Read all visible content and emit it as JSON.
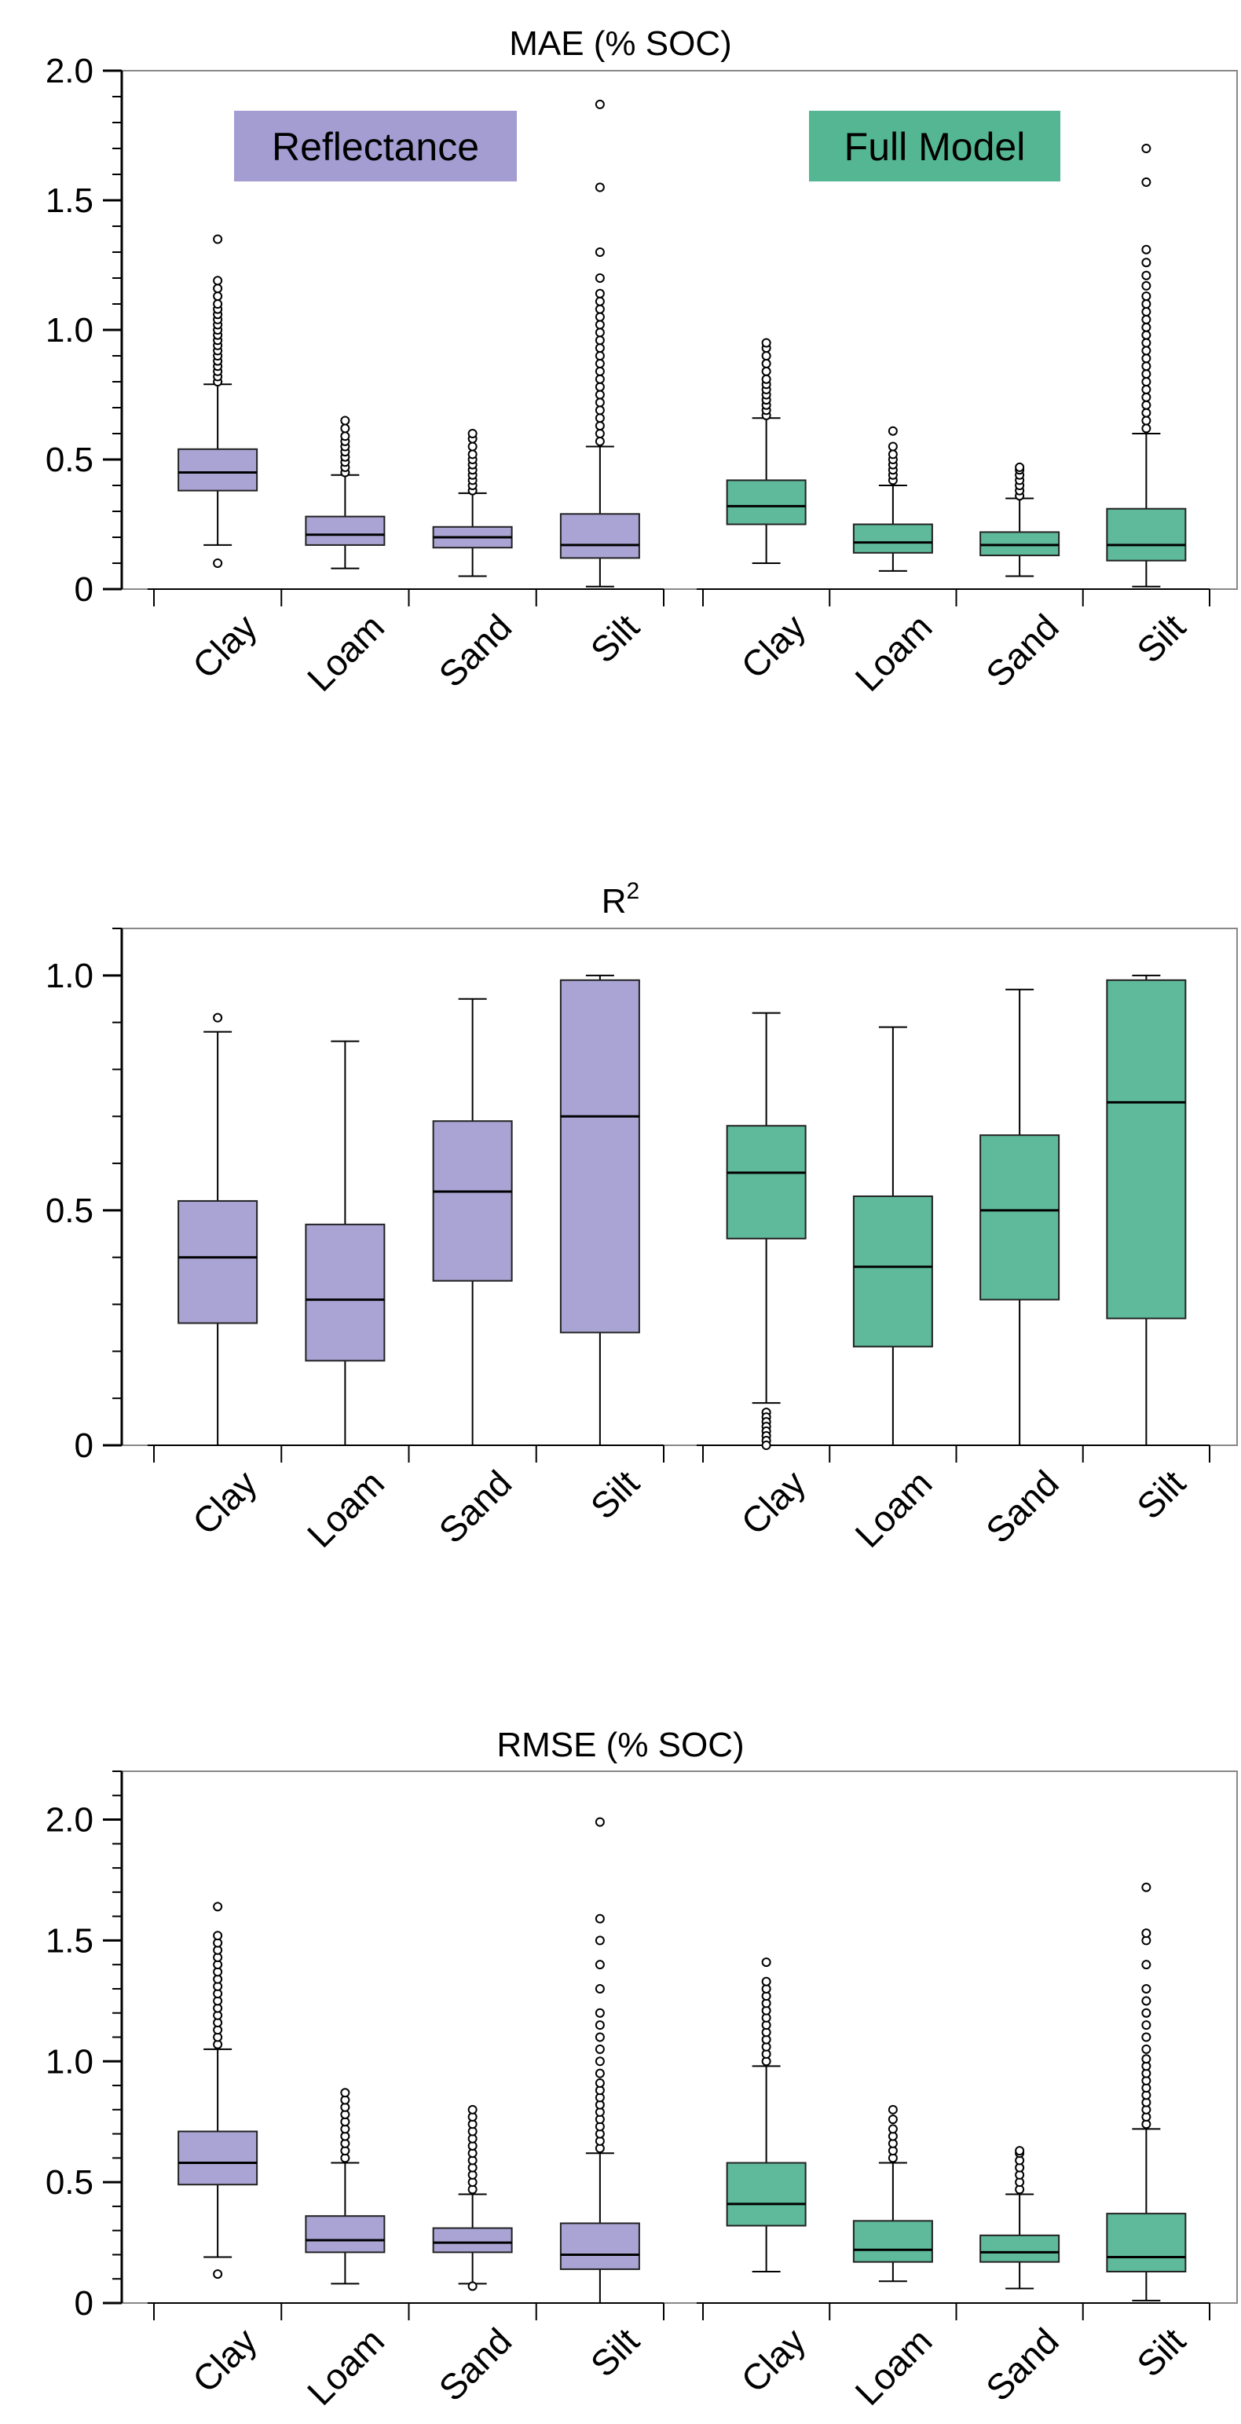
{
  "colors": {
    "reflectance": "#aaa4d4",
    "full_model": "#5fba9c",
    "reflectance_label_bg": "#a39dd2",
    "full_model_label_bg": "#55b694",
    "axis": "#000000",
    "frame": "#888888"
  },
  "legend": {
    "reflectance": "Reflectance",
    "full_model": "Full Model"
  },
  "chart_data": [
    {
      "type": "box",
      "title": "MAE (% SOC)",
      "ylim": [
        0,
        2.0
      ],
      "yticks": [
        "0",
        "0.5",
        "1.0",
        "1.5",
        "2.0"
      ],
      "ytick_values": [
        0,
        0.5,
        1.0,
        1.5,
        2.0
      ],
      "minor_step": 0.1,
      "categories": [
        "Clay",
        "Loam",
        "Sand",
        "Silt"
      ],
      "series": [
        {
          "name": "Reflectance",
          "boxes": [
            {
              "category": "Clay",
              "low": 0.17,
              "q1": 0.38,
              "median": 0.45,
              "q3": 0.54,
              "high": 0.79,
              "outliers": [
                0.8,
                0.82,
                0.84,
                0.86,
                0.88,
                0.9,
                0.92,
                0.94,
                0.96,
                0.98,
                1.0,
                1.02,
                1.04,
                1.06,
                1.08,
                1.1,
                1.13,
                1.16,
                1.19,
                1.35,
                0.1
              ]
            },
            {
              "category": "Loam",
              "low": 0.08,
              "q1": 0.17,
              "median": 0.21,
              "q3": 0.28,
              "high": 0.44,
              "outliers": [
                0.45,
                0.47,
                0.49,
                0.51,
                0.53,
                0.55,
                0.57,
                0.59,
                0.62,
                0.65
              ]
            },
            {
              "category": "Sand",
              "low": 0.05,
              "q1": 0.16,
              "median": 0.2,
              "q3": 0.24,
              "high": 0.37,
              "outliers": [
                0.38,
                0.4,
                0.42,
                0.44,
                0.46,
                0.48,
                0.5,
                0.52,
                0.55,
                0.58,
                0.6
              ]
            },
            {
              "category": "Silt",
              "low": 0.01,
              "q1": 0.12,
              "median": 0.17,
              "q3": 0.29,
              "high": 0.55,
              "outliers": [
                0.57,
                0.6,
                0.63,
                0.66,
                0.69,
                0.72,
                0.75,
                0.78,
                0.81,
                0.84,
                0.87,
                0.9,
                0.93,
                0.96,
                0.99,
                1.02,
                1.05,
                1.08,
                1.11,
                1.14,
                1.2,
                1.3,
                1.55,
                1.87
              ]
            }
          ]
        },
        {
          "name": "Full Model",
          "boxes": [
            {
              "category": "Clay",
              "low": 0.1,
              "q1": 0.25,
              "median": 0.32,
              "q3": 0.42,
              "high": 0.66,
              "outliers": [
                0.67,
                0.69,
                0.71,
                0.73,
                0.75,
                0.77,
                0.79,
                0.81,
                0.84,
                0.87,
                0.9,
                0.93,
                0.95
              ]
            },
            {
              "category": "Loam",
              "low": 0.07,
              "q1": 0.14,
              "median": 0.18,
              "q3": 0.25,
              "high": 0.4,
              "outliers": [
                0.42,
                0.44,
                0.46,
                0.48,
                0.5,
                0.52,
                0.55,
                0.61
              ]
            },
            {
              "category": "Sand",
              "low": 0.05,
              "q1": 0.13,
              "median": 0.17,
              "q3": 0.22,
              "high": 0.35,
              "outliers": [
                0.36,
                0.38,
                0.4,
                0.42,
                0.44,
                0.46,
                0.47
              ]
            },
            {
              "category": "Silt",
              "low": 0.01,
              "q1": 0.11,
              "median": 0.17,
              "q3": 0.31,
              "high": 0.6,
              "outliers": [
                0.62,
                0.65,
                0.68,
                0.71,
                0.74,
                0.77,
                0.8,
                0.83,
                0.86,
                0.89,
                0.92,
                0.95,
                0.98,
                1.01,
                1.04,
                1.07,
                1.1,
                1.13,
                1.17,
                1.21,
                1.26,
                1.31,
                1.57,
                1.7
              ]
            }
          ]
        }
      ]
    },
    {
      "type": "box",
      "title": "R",
      "title_sup": "2",
      "ylim": [
        0,
        1.1
      ],
      "yticks": [
        "0",
        "0.5",
        "1.0"
      ],
      "ytick_values": [
        0,
        0.5,
        1.0
      ],
      "minor_step": 0.1,
      "categories": [
        "Clay",
        "Loam",
        "Sand",
        "Silt"
      ],
      "series": [
        {
          "name": "Reflectance",
          "boxes": [
            {
              "category": "Clay",
              "low": 0.0,
              "q1": 0.26,
              "median": 0.4,
              "q3": 0.52,
              "high": 0.88,
              "outliers": [
                0.91
              ]
            },
            {
              "category": "Loam",
              "low": 0.0,
              "q1": 0.18,
              "median": 0.31,
              "q3": 0.47,
              "high": 0.86,
              "outliers": []
            },
            {
              "category": "Sand",
              "low": 0.0,
              "q1": 0.35,
              "median": 0.54,
              "q3": 0.69,
              "high": 0.95,
              "outliers": []
            },
            {
              "category": "Silt",
              "low": 0.0,
              "q1": 0.24,
              "median": 0.7,
              "q3": 0.99,
              "high": 1.0,
              "outliers": []
            }
          ]
        },
        {
          "name": "Full Model",
          "boxes": [
            {
              "category": "Clay",
              "low": 0.09,
              "q1": 0.44,
              "median": 0.58,
              "q3": 0.68,
              "high": 0.92,
              "outliers": [
                0.07,
                0.06,
                0.05,
                0.04,
                0.03,
                0.02,
                0.01,
                0.0
              ]
            },
            {
              "category": "Loam",
              "low": 0.0,
              "q1": 0.21,
              "median": 0.38,
              "q3": 0.53,
              "high": 0.89,
              "outliers": []
            },
            {
              "category": "Sand",
              "low": 0.0,
              "q1": 0.31,
              "median": 0.5,
              "q3": 0.66,
              "high": 0.97,
              "outliers": []
            },
            {
              "category": "Silt",
              "low": 0.0,
              "q1": 0.27,
              "median": 0.73,
              "q3": 0.99,
              "high": 1.0,
              "outliers": []
            }
          ]
        }
      ]
    },
    {
      "type": "box",
      "title": "RMSE (% SOC)",
      "ylim": [
        0,
        2.2
      ],
      "yticks": [
        "0",
        "0.5",
        "1.0",
        "1.5",
        "2.0"
      ],
      "ytick_values": [
        0,
        0.5,
        1.0,
        1.5,
        2.0
      ],
      "minor_step": 0.1,
      "categories": [
        "Clay",
        "Loam",
        "Sand",
        "Silt"
      ],
      "series": [
        {
          "name": "Reflectance",
          "boxes": [
            {
              "category": "Clay",
              "low": 0.19,
              "q1": 0.49,
              "median": 0.58,
              "q3": 0.71,
              "high": 1.05,
              "outliers": [
                1.07,
                1.1,
                1.13,
                1.16,
                1.19,
                1.22,
                1.25,
                1.28,
                1.31,
                1.34,
                1.37,
                1.4,
                1.43,
                1.46,
                1.49,
                1.52,
                1.64,
                0.12
              ]
            },
            {
              "category": "Loam",
              "low": 0.08,
              "q1": 0.21,
              "median": 0.26,
              "q3": 0.36,
              "high": 0.58,
              "outliers": [
                0.6,
                0.63,
                0.66,
                0.69,
                0.72,
                0.75,
                0.78,
                0.81,
                0.84,
                0.87
              ]
            },
            {
              "category": "Sand",
              "low": 0.08,
              "q1": 0.21,
              "median": 0.25,
              "q3": 0.31,
              "high": 0.45,
              "outliers": [
                0.47,
                0.5,
                0.53,
                0.56,
                0.59,
                0.62,
                0.65,
                0.68,
                0.71,
                0.74,
                0.77,
                0.8,
                0.07
              ]
            },
            {
              "category": "Silt",
              "low": 0.0,
              "q1": 0.14,
              "median": 0.2,
              "q3": 0.33,
              "high": 0.62,
              "outliers": [
                0.64,
                0.67,
                0.7,
                0.73,
                0.76,
                0.79,
                0.82,
                0.85,
                0.88,
                0.91,
                0.95,
                1.0,
                1.05,
                1.1,
                1.15,
                1.2,
                1.3,
                1.4,
                1.5,
                1.59,
                1.99
              ]
            }
          ]
        },
        {
          "name": "Full Model",
          "boxes": [
            {
              "category": "Clay",
              "low": 0.13,
              "q1": 0.32,
              "median": 0.41,
              "q3": 0.58,
              "high": 0.98,
              "outliers": [
                1.0,
                1.03,
                1.06,
                1.09,
                1.12,
                1.15,
                1.18,
                1.21,
                1.24,
                1.27,
                1.3,
                1.33,
                1.41
              ]
            },
            {
              "category": "Loam",
              "low": 0.09,
              "q1": 0.17,
              "median": 0.22,
              "q3": 0.34,
              "high": 0.58,
              "outliers": [
                0.6,
                0.63,
                0.66,
                0.69,
                0.72,
                0.76,
                0.8
              ]
            },
            {
              "category": "Sand",
              "low": 0.06,
              "q1": 0.17,
              "median": 0.21,
              "q3": 0.28,
              "high": 0.45,
              "outliers": [
                0.47,
                0.5,
                0.53,
                0.56,
                0.59,
                0.62,
                0.63
              ]
            },
            {
              "category": "Silt",
              "low": 0.01,
              "q1": 0.13,
              "median": 0.19,
              "q3": 0.37,
              "high": 0.72,
              "outliers": [
                0.74,
                0.77,
                0.8,
                0.83,
                0.86,
                0.89,
                0.92,
                0.95,
                0.98,
                1.01,
                1.05,
                1.1,
                1.15,
                1.2,
                1.25,
                1.3,
                1.4,
                1.5,
                1.53,
                1.72
              ]
            }
          ]
        }
      ]
    }
  ]
}
